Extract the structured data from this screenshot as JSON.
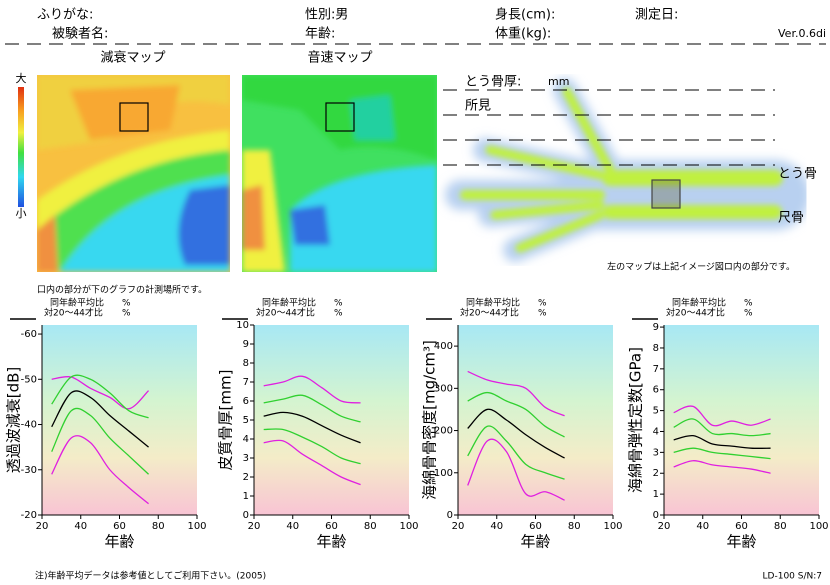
{
  "header": {
    "furigana": "ふりがな:",
    "sex": "性別:男",
    "height": "身長(cm):",
    "date": "測定日:",
    "name": "被験者名:",
    "age": "年齢:",
    "weight": "体重(kg):",
    "version": "Ver.0.6di"
  },
  "maps": {
    "attenuation_title": "減衰マップ",
    "speed_title": "音速マップ",
    "scale_high": "大",
    "scale_low": "小"
  },
  "hand": {
    "thickness_label": "とう骨厚:",
    "thickness_unit": "mm",
    "findings": "所見",
    "radius": "とう骨",
    "ulna": "尺骨",
    "note": "左のマップは上記イメージ図ロ内の部分です。"
  },
  "graph_note": "口内の部分が下のグラフの計測場所です。",
  "chart_data": [
    {
      "type": "line",
      "ylabel": "透過波減衰[dB]",
      "xlabel": "年齢",
      "annotations": [
        "同年齢平均比",
        "%",
        "対20〜44才比",
        "%"
      ],
      "x": [
        25,
        35,
        45,
        55,
        65,
        75
      ],
      "xlim": [
        20,
        100
      ],
      "xticks": [
        20,
        40,
        60,
        80,
        100
      ],
      "ylim": [
        -20,
        -62
      ],
      "yticks": [
        -60,
        -50,
        -40,
        -30,
        -20
      ],
      "series": [
        {
          "color": "#e020e0",
          "values": [
            -50,
            -50.5,
            -48,
            -46,
            -43.5,
            -47.5
          ]
        },
        {
          "color": "#30d030",
          "values": [
            -44.5,
            -50.5,
            -50,
            -47,
            -43,
            -41.5
          ]
        },
        {
          "color": "#000000",
          "values": [
            -39.5,
            -47,
            -46,
            -42,
            -38.5,
            -35
          ]
        },
        {
          "color": "#30d030",
          "values": [
            -34,
            -43,
            -42,
            -37,
            -33,
            -29
          ]
        },
        {
          "color": "#e020e0",
          "values": [
            -29,
            -37,
            -36,
            -30,
            -26,
            -22.5
          ]
        }
      ]
    },
    {
      "type": "line",
      "ylabel": "皮質骨厚[mm]",
      "xlabel": "年齢",
      "annotations": [
        "同年齢平均比",
        "%",
        "対20〜44才比",
        "%"
      ],
      "x": [
        25,
        35,
        45,
        55,
        65,
        75
      ],
      "xlim": [
        20,
        100
      ],
      "xticks": [
        20,
        40,
        60,
        80,
        100
      ],
      "ylim": [
        0,
        10
      ],
      "yticks": [
        0,
        1,
        2,
        3,
        4,
        5,
        6,
        7,
        8,
        9,
        10
      ],
      "series": [
        {
          "color": "#e020e0",
          "values": [
            6.8,
            7.0,
            7.3,
            6.7,
            6.0,
            5.9
          ]
        },
        {
          "color": "#30d030",
          "values": [
            5.9,
            6.1,
            6.3,
            5.8,
            5.2,
            4.9
          ]
        },
        {
          "color": "#000000",
          "values": [
            5.2,
            5.4,
            5.2,
            4.7,
            4.2,
            3.8
          ]
        },
        {
          "color": "#30d030",
          "values": [
            4.5,
            4.5,
            4.1,
            3.6,
            3.0,
            2.7
          ]
        },
        {
          "color": "#e020e0",
          "values": [
            3.8,
            3.9,
            3.2,
            2.6,
            2.0,
            1.6
          ]
        }
      ]
    },
    {
      "type": "line",
      "ylabel": "海綿骨骨密度[mg/cm³]",
      "xlabel": "年齢",
      "annotations": [
        "同年齢平均比",
        "%",
        "対20〜44才比",
        "%"
      ],
      "x": [
        25,
        35,
        45,
        55,
        65,
        75
      ],
      "xlim": [
        20,
        100
      ],
      "xticks": [
        20,
        40,
        60,
        80,
        100
      ],
      "ylim": [
        0,
        450
      ],
      "yticks": [
        0,
        100,
        200,
        300,
        400
      ],
      "series": [
        {
          "color": "#e020e0",
          "values": [
            340,
            320,
            310,
            300,
            255,
            235
          ]
        },
        {
          "color": "#30d030",
          "values": [
            270,
            290,
            270,
            250,
            210,
            185
          ]
        },
        {
          "color": "#000000",
          "values": [
            205,
            250,
            225,
            190,
            160,
            135
          ]
        },
        {
          "color": "#30d030",
          "values": [
            140,
            210,
            175,
            120,
            100,
            85
          ]
        },
        {
          "color": "#e020e0",
          "values": [
            70,
            175,
            150,
            50,
            55,
            35
          ]
        }
      ]
    },
    {
      "type": "line",
      "ylabel": "海綿骨弾性定数[GPa]",
      "xlabel": "年齢",
      "annotations": [
        "同年齢平均比",
        "%",
        "対20〜44才比",
        "%"
      ],
      "x": [
        25,
        35,
        45,
        55,
        65,
        75
      ],
      "xlim": [
        20,
        100
      ],
      "xticks": [
        20,
        40,
        60,
        80,
        100
      ],
      "ylim": [
        0,
        9.1
      ],
      "yticks": [
        0,
        1,
        2,
        3,
        4,
        5,
        6,
        7,
        8,
        9
      ],
      "series": [
        {
          "color": "#e020e0",
          "values": [
            4.9,
            5.2,
            4.3,
            4.5,
            4.3,
            4.6
          ]
        },
        {
          "color": "#30d030",
          "values": [
            4.2,
            4.6,
            3.9,
            3.9,
            3.8,
            3.9
          ]
        },
        {
          "color": "#000000",
          "values": [
            3.6,
            3.8,
            3.4,
            3.3,
            3.2,
            3.2
          ]
        },
        {
          "color": "#30d030",
          "values": [
            3.0,
            3.2,
            3.0,
            2.9,
            2.8,
            2.7
          ]
        },
        {
          "color": "#e020e0",
          "values": [
            2.3,
            2.6,
            2.4,
            2.3,
            2.2,
            2.0
          ]
        }
      ]
    }
  ],
  "footer": {
    "note": "注)年齢平均データは参考値としてご利用下さい。(2005)",
    "model": "LD-100 S/N:7"
  }
}
